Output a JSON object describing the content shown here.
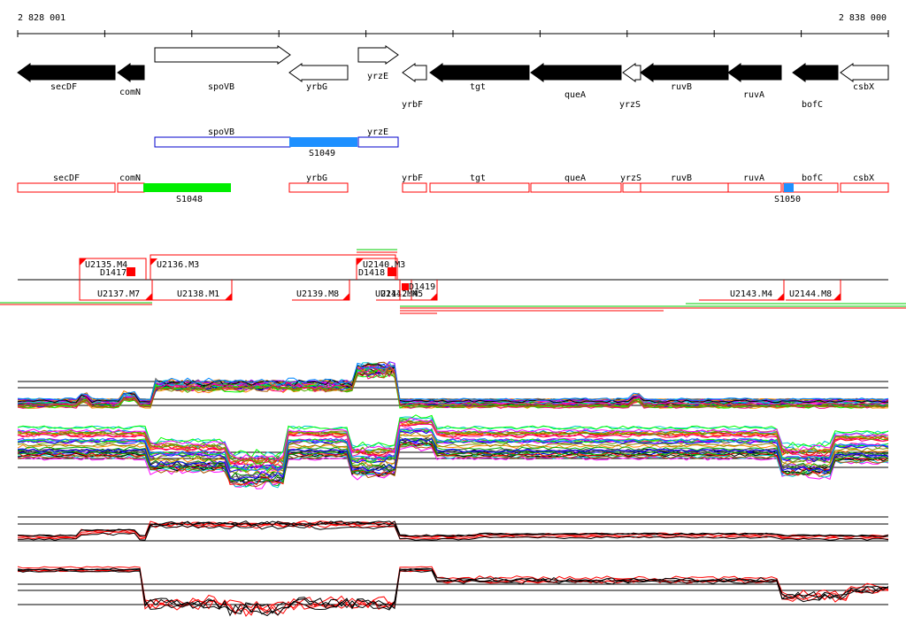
{
  "ruler": {
    "start_label": "2 828 001",
    "end_label": "2 838 000"
  },
  "genes": [
    {
      "name": "secDF",
      "strand": "-",
      "filled": true
    },
    {
      "name": "comN",
      "strand": "-",
      "filled": true
    },
    {
      "name": "spoVB",
      "strand": "+",
      "filled": false
    },
    {
      "name": "yrbG",
      "strand": "-",
      "filled": false
    },
    {
      "name": "yrzE",
      "strand": "+",
      "filled": false
    },
    {
      "name": "yrbF",
      "strand": "-",
      "filled": false
    },
    {
      "name": "tgt",
      "strand": "-",
      "filled": true
    },
    {
      "name": "queA",
      "strand": "-",
      "filled": true
    },
    {
      "name": "yrzS",
      "strand": "-",
      "filled": false
    },
    {
      "name": "ruvB",
      "strand": "-",
      "filled": true
    },
    {
      "name": "ruvA",
      "strand": "-",
      "filled": true
    },
    {
      "name": "bofC",
      "strand": "-",
      "filled": true
    },
    {
      "name": "csbX",
      "strand": "-",
      "filled": false
    }
  ],
  "blue_track": {
    "boxes": [
      {
        "label": "spoVB"
      },
      {
        "label": "yrzE"
      }
    ],
    "segment_label": "S1049",
    "color": "#1e90ff"
  },
  "red_track": {
    "boxes": [
      {
        "label": "secDF"
      },
      {
        "label": "comN"
      },
      {
        "label": "yrbG"
      },
      {
        "label": "yrbF"
      },
      {
        "label": "tgt"
      },
      {
        "label": "queA"
      },
      {
        "label": "yrzS"
      },
      {
        "label": "ruvB"
      },
      {
        "label": "ruvA"
      },
      {
        "label": "bofC"
      },
      {
        "label": "csbX"
      }
    ],
    "segments": [
      {
        "label": "S1048",
        "color": "#00ee00"
      },
      {
        "label": "S1050",
        "color": "#1e90ff"
      }
    ]
  },
  "transcripts_top": [
    {
      "label": "U2135.M4"
    },
    {
      "label": "U2136.M3"
    },
    {
      "label": "U2140.M3"
    },
    {
      "label": "D1417"
    },
    {
      "label": "D1418"
    }
  ],
  "transcripts_bottom": [
    {
      "label": "U2137.M7"
    },
    {
      "label": "U2138.M1"
    },
    {
      "label": "U2139.M8"
    },
    {
      "label": "U2141.M4"
    },
    {
      "label": "U2142.M5"
    },
    {
      "label": "D1419"
    },
    {
      "label": "U2143.M4"
    },
    {
      "label": "U2144.M8"
    }
  ],
  "colors": {
    "gene_fill": "#000000",
    "feature_red": "#ff0000",
    "axis": "#000000"
  }
}
